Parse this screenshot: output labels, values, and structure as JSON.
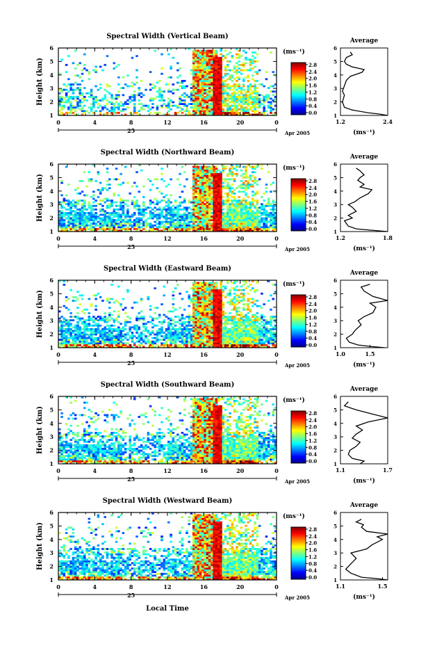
{
  "chart_data": {
    "type": "heatmap",
    "x_label": "Local Time",
    "date_label": "25",
    "date_suffix": "Apr 2005",
    "time_ticks": [
      "0",
      "4",
      "8",
      "12",
      "16",
      "20",
      "0"
    ],
    "height_ticks": [
      "1",
      "2",
      "3",
      "4",
      "5",
      "6"
    ],
    "height_axis_label": "Height (km)",
    "colorbar_unit": "(ms⁻¹)",
    "colorbar_ticks": [
      "0.0",
      "0.4",
      "0.8",
      "1.2",
      "1.6",
      "2.0",
      "2.4",
      "2.8"
    ],
    "average_title": "Average",
    "average_unit": "(ms⁻¹)",
    "panels": [
      {
        "title": "Spectral Width (Vertical Beam)",
        "colorbar_ticks": [
          "0.0",
          "0.4",
          "0.8",
          "1.2",
          "1.6",
          "2.0",
          "2.4",
          "2.8"
        ],
        "average_xticks": [
          "1.2",
          "2.4"
        ],
        "average_xlim": [
          1.2,
          2.4
        ],
        "average_profile": [
          [
            2.4,
            1.0
          ],
          [
            2.2,
            1.1
          ],
          [
            1.9,
            1.2
          ],
          [
            1.5,
            1.4
          ],
          [
            1.3,
            1.6
          ],
          [
            1.25,
            2.0
          ],
          [
            1.3,
            2.5
          ],
          [
            1.25,
            2.8
          ],
          [
            1.3,
            3.2
          ],
          [
            1.35,
            3.6
          ],
          [
            1.45,
            3.9
          ],
          [
            1.75,
            4.2
          ],
          [
            1.8,
            4.4
          ],
          [
            1.5,
            4.6
          ],
          [
            1.35,
            4.8
          ],
          [
            1.3,
            5.0
          ],
          [
            1.35,
            5.3
          ],
          [
            1.5,
            5.5
          ],
          [
            1.45,
            5.7
          ]
        ]
      },
      {
        "title": "Spectral Width (Northward Beam)",
        "colorbar_ticks": [
          "0.0",
          "0.4",
          "0.8",
          "1.2",
          "1.6",
          "2.0",
          "2.4",
          "2.8"
        ],
        "average_xticks": [
          "1.2",
          "1.8"
        ],
        "average_xlim": [
          1.2,
          1.8
        ],
        "average_profile": [
          [
            1.8,
            1.0
          ],
          [
            1.6,
            1.1
          ],
          [
            1.4,
            1.2
          ],
          [
            1.3,
            1.4
          ],
          [
            1.25,
            1.8
          ],
          [
            1.35,
            2.0
          ],
          [
            1.3,
            2.2
          ],
          [
            1.4,
            2.5
          ],
          [
            1.35,
            2.8
          ],
          [
            1.3,
            3.0
          ],
          [
            1.38,
            3.2
          ],
          [
            1.45,
            3.5
          ],
          [
            1.55,
            3.8
          ],
          [
            1.6,
            4.1
          ],
          [
            1.45,
            4.3
          ],
          [
            1.5,
            4.5
          ],
          [
            1.42,
            4.8
          ],
          [
            1.45,
            5.0
          ],
          [
            1.5,
            5.2
          ],
          [
            1.45,
            5.5
          ],
          [
            1.4,
            5.7
          ]
        ]
      },
      {
        "title": "Spectral Width (Eastward Beam)",
        "colorbar_ticks": [
          "0.0",
          "0.4",
          "0.8",
          "1.2",
          "1.6",
          "2.0",
          "2.4",
          "2.8"
        ],
        "average_xticks": [
          "1.0",
          "1.5"
        ],
        "average_xlim": [
          1.0,
          1.8
        ],
        "average_profile": [
          [
            1.75,
            1.0
          ],
          [
            1.5,
            1.1
          ],
          [
            1.3,
            1.2
          ],
          [
            1.15,
            1.4
          ],
          [
            1.1,
            1.7
          ],
          [
            1.2,
            2.0
          ],
          [
            1.25,
            2.3
          ],
          [
            1.35,
            2.7
          ],
          [
            1.3,
            3.0
          ],
          [
            1.4,
            3.3
          ],
          [
            1.55,
            3.6
          ],
          [
            1.6,
            4.0
          ],
          [
            1.5,
            4.3
          ],
          [
            1.8,
            4.5
          ],
          [
            1.55,
            4.8
          ],
          [
            1.4,
            5.2
          ],
          [
            1.35,
            5.5
          ],
          [
            1.5,
            5.7
          ]
        ]
      },
      {
        "title": "Spectral Width (Southward Beam)",
        "colorbar_ticks": [
          "0.0",
          "0.4",
          "0.8",
          "1.2",
          "1.6",
          "2.0",
          "2.4",
          "2.8"
        ],
        "average_xticks": [
          "1.1",
          "1.7"
        ],
        "average_xlim": [
          1.1,
          1.7
        ],
        "average_profile": [
          [
            1.35,
            1.0
          ],
          [
            1.4,
            1.2
          ],
          [
            1.25,
            1.4
          ],
          [
            1.2,
            1.7
          ],
          [
            1.22,
            2.0
          ],
          [
            1.3,
            2.3
          ],
          [
            1.35,
            2.6
          ],
          [
            1.25,
            2.9
          ],
          [
            1.3,
            3.2
          ],
          [
            1.38,
            3.5
          ],
          [
            1.3,
            3.8
          ],
          [
            1.45,
            4.1
          ],
          [
            1.7,
            4.4
          ],
          [
            1.5,
            4.7
          ],
          [
            1.3,
            5.0
          ],
          [
            1.15,
            5.3
          ],
          [
            1.2,
            5.6
          ]
        ]
      },
      {
        "title": "Spectral Width (Westward Beam)",
        "colorbar_ticks": [
          "0.0",
          "0.4",
          "0.8",
          "1.2",
          "1.6",
          "2.0",
          "2.4",
          "2.8"
        ],
        "average_xticks": [
          "1.1",
          "1.5"
        ],
        "average_xlim": [
          1.1,
          1.55
        ],
        "average_profile": [
          [
            1.55,
            1.0
          ],
          [
            1.45,
            1.1
          ],
          [
            1.3,
            1.2
          ],
          [
            1.2,
            1.5
          ],
          [
            1.15,
            1.8
          ],
          [
            1.2,
            2.2
          ],
          [
            1.25,
            2.6
          ],
          [
            1.2,
            3.0
          ],
          [
            1.35,
            3.3
          ],
          [
            1.4,
            3.6
          ],
          [
            1.5,
            4.0
          ],
          [
            1.45,
            4.2
          ],
          [
            1.55,
            4.4
          ],
          [
            1.35,
            4.6
          ],
          [
            1.3,
            4.9
          ],
          [
            1.32,
            5.1
          ],
          [
            1.25,
            5.3
          ],
          [
            1.3,
            5.5
          ]
        ]
      }
    ]
  }
}
